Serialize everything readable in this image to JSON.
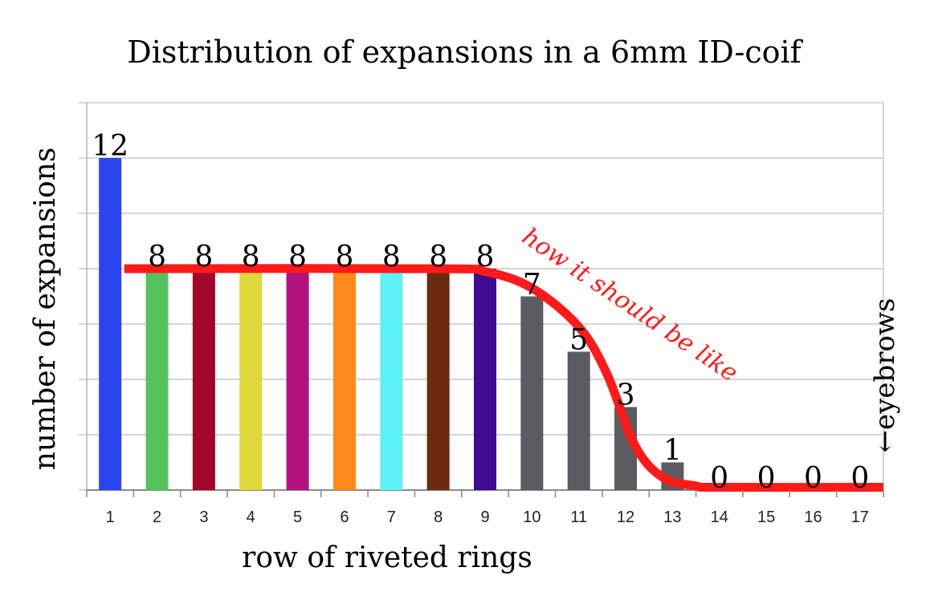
{
  "chart_data": {
    "type": "bar",
    "title": "Distribution of expansions in a 6mm ID-coif",
    "xlabel": "row of riveted rings",
    "ylabel": "number of expansions",
    "categories": [
      "1",
      "2",
      "3",
      "4",
      "5",
      "6",
      "7",
      "8",
      "9",
      "10",
      "11",
      "12",
      "13",
      "14",
      "15",
      "16",
      "17"
    ],
    "values": [
      12,
      8,
      8,
      8,
      8,
      8,
      8,
      8,
      8,
      7,
      5,
      3,
      1,
      0,
      0,
      0,
      0
    ],
    "value_labels": [
      "12",
      "8",
      "8",
      "8",
      "8",
      "8",
      "8",
      "8",
      "8",
      "7",
      "5",
      "3",
      "1",
      "0",
      "0",
      "0",
      "0"
    ],
    "bar_colors": [
      "#2a45f0",
      "#55c25e",
      "#a0072a",
      "#dfd83a",
      "#b3117e",
      "#fc8a1a",
      "#5ef2f7",
      "#6c2b11",
      "#420a90",
      "#5b5b60",
      "#5b5b60",
      "#5b5b60",
      "#5b5b60",
      "#5b5b60",
      "#5b5b60",
      "#5b5b60",
      "#5b5b60"
    ],
    "ylim": [
      0,
      14
    ],
    "y_gridline_step": 2,
    "grid": true,
    "overlay_line": {
      "label": "how it should be like",
      "color": "#ff1a1a",
      "points": [
        [
          1.3,
          8
        ],
        [
          8,
          8
        ],
        [
          9,
          7.9
        ],
        [
          10,
          7.3
        ],
        [
          11,
          5.9
        ],
        [
          11.6,
          4.2
        ],
        [
          12.2,
          1.6
        ],
        [
          12.8,
          0.45
        ],
        [
          13.5,
          0.15
        ],
        [
          14,
          0.1
        ],
        [
          17.5,
          0.1
        ]
      ]
    },
    "annotation": "←eyebrows"
  }
}
